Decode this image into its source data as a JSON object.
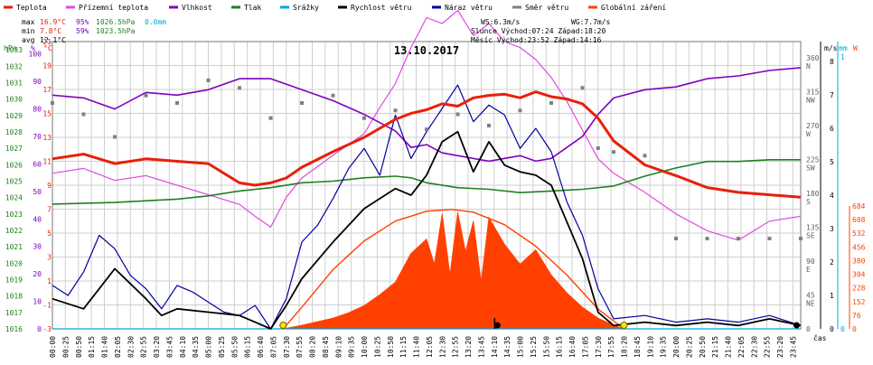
{
  "chart_data": {
    "type": "line",
    "title": "13.10.2017",
    "xlabel": "čas",
    "legend_position": "top",
    "grid": true,
    "legend": [
      {
        "label": "Teplota",
        "color": "#e8200a"
      },
      {
        "label": "Přízemní teplota",
        "color": "#e04ae0"
      },
      {
        "label": "Vlhkost",
        "color": "#8000c0"
      },
      {
        "label": "Tlak",
        "color": "#208020"
      },
      {
        "label": "Srážky",
        "color": "#00a8d8"
      },
      {
        "label": "Rychlost větru",
        "color": "#000000"
      },
      {
        "label": "Náraz větru",
        "color": "#0000a0"
      },
      {
        "label": "Směr větru",
        "color": "#808080"
      },
      {
        "label": "Globální záření",
        "color": "#ff4000"
      }
    ],
    "stats": {
      "max": {
        "label": "max",
        "temp": "16.9°C",
        "hum": "95%",
        "press": "1026.5hPa",
        "rain": "0.0mm"
      },
      "min": {
        "label": "min",
        "temp": "7.8°C",
        "hum": "59%",
        "press": "1023.5hPa"
      },
      "avg": {
        "label": "avg",
        "temp": "12.1°C"
      }
    },
    "info": {
      "ws": "WS:6.3m/s",
      "wg": "WG:7.7m/s",
      "sun": "Slunce Východ:07:24  Západ:18:20",
      "moon": "Měsíc  Východ:23:52  Západ:14:16"
    },
    "axes": {
      "hpa": {
        "label": "hPa",
        "ticks": [
          "1033",
          "1032",
          "1031",
          "1030",
          "1029",
          "1028",
          "1027",
          "1026",
          "1025",
          "1024",
          "1023",
          "1022",
          "1021",
          "1020",
          "1019",
          "1018",
          "1017",
          "1016"
        ],
        "color": "#208020"
      },
      "pct": {
        "label": "%",
        "ticks": [
          "100",
          "90",
          "80",
          "70",
          "60",
          "50",
          "40",
          "30",
          "20",
          "10",
          "0"
        ],
        "color": "#8000c0"
      },
      "degc": {
        "label": "°C",
        "ticks": [
          "21",
          "19",
          "17",
          "15",
          "13",
          "11",
          "9",
          "7",
          "5",
          "3",
          "1",
          "-1",
          "-3"
        ],
        "color": "#e8200a"
      },
      "dir": {
        "ticks": [
          "360\nN",
          "315\nNW",
          "270\nW",
          "225\nSW",
          "180\nS",
          "135\nSE",
          "90\nE",
          "45\nNE",
          "0"
        ],
        "color": "#606060"
      },
      "ms": {
        "label": "m/s",
        "ticks": [
          "8",
          "7",
          "6",
          "5",
          "4",
          "3",
          "2",
          "1",
          "0"
        ],
        "color": "#000000"
      },
      "mm": {
        "label": "mm",
        "ticks": [
          "1",
          "0"
        ],
        "color": "#00a8d8"
      },
      "wm2": {
        "label": "W",
        "ticks": [
          "684",
          "608",
          "532",
          "456",
          "380",
          "304",
          "228",
          "152",
          "76",
          "0"
        ],
        "color": "#ff4000"
      }
    },
    "x_ticks": [
      "00:00",
      "00:25",
      "00:50",
      "01:15",
      "01:40",
      "02:05",
      "02:30",
      "02:55",
      "03:20",
      "03:45",
      "04:10",
      "04:35",
      "05:00",
      "05:25",
      "05:50",
      "06:15",
      "06:40",
      "07:05",
      "07:30",
      "07:55",
      "08:20",
      "08:45",
      "09:10",
      "09:35",
      "10:00",
      "10:25",
      "10:50",
      "11:15",
      "11:40",
      "12:05",
      "12:30",
      "12:55",
      "13:20",
      "13:45",
      "14:10",
      "14:35",
      "15:00",
      "15:25",
      "15:50",
      "16:15",
      "16:40",
      "17:05",
      "17:30",
      "17:55",
      "18:20",
      "18:45",
      "19:10",
      "19:35",
      "20:00",
      "20:25",
      "20:50",
      "21:15",
      "21:40",
      "22:05",
      "22:30",
      "22:55",
      "23:20",
      "23:45"
    ],
    "series": [
      {
        "name": "Teplota",
        "unit": "°C",
        "color": "#e8200a",
        "x": [
          0,
          1,
          2,
          3,
          4,
          5,
          6,
          6.5,
          7,
          7.5,
          8,
          9,
          10,
          11,
          11.5,
          12,
          12.5,
          13,
          13.5,
          14,
          14.5,
          15,
          15.5,
          16,
          16.5,
          17,
          17.5,
          18,
          19,
          20,
          21,
          22,
          23,
          24
        ],
        "y": [
          11.2,
          11.6,
          10.8,
          11.2,
          11.0,
          10.8,
          9.2,
          9.0,
          9.2,
          9.6,
          10.5,
          11.8,
          13.0,
          14.5,
          15.0,
          15.3,
          15.8,
          15.6,
          16.3,
          16.5,
          16.6,
          16.3,
          16.8,
          16.4,
          16.2,
          15.8,
          14.6,
          12.7,
          10.7,
          9.8,
          8.8,
          8.4,
          8.2,
          8.0
        ]
      },
      {
        "name": "Přízemní teplota",
        "unit": "°C",
        "color": "#e04ae0",
        "x": [
          0,
          1,
          2,
          3,
          4,
          5,
          6,
          6.5,
          7,
          7.5,
          8,
          9,
          10,
          10.5,
          11,
          11.5,
          12,
          12.5,
          13,
          13.5,
          14,
          14.5,
          15,
          15.5,
          16,
          16.5,
          17,
          17.5,
          18,
          19,
          20,
          21,
          22,
          23,
          24
        ],
        "y": [
          10.0,
          10.4,
          9.4,
          9.8,
          9.0,
          8.2,
          7.4,
          6.4,
          5.5,
          8.0,
          9.6,
          11.5,
          13.3,
          15.5,
          17.5,
          20.5,
          23.0,
          22.5,
          23.6,
          21.5,
          22.5,
          21.0,
          20.5,
          19.5,
          18.0,
          16.0,
          13.6,
          11.2,
          10.0,
          8.4,
          6.6,
          5.2,
          4.4,
          6.0,
          6.4
        ]
      },
      {
        "name": "Vlhkost",
        "unit": "%",
        "color": "#8000c0",
        "x": [
          0,
          1,
          2,
          3,
          4,
          5,
          6,
          7,
          8,
          9,
          10,
          11,
          11.5,
          12,
          12.5,
          13,
          14,
          15,
          15.5,
          16,
          16.5,
          17,
          17.5,
          18,
          19,
          20,
          21,
          22,
          23,
          24
        ],
        "y": [
          85,
          84,
          80,
          86,
          85,
          87,
          91,
          91,
          87,
          83,
          78,
          72,
          66,
          67,
          64,
          63,
          61,
          63,
          61,
          62,
          66,
          70,
          78,
          84,
          87,
          88,
          91,
          92,
          94,
          95
        ]
      },
      {
        "name": "Tlak",
        "unit": "hPa",
        "color": "#208020",
        "x": [
          0,
          2,
          4,
          5,
          6,
          7,
          8,
          9,
          10,
          11,
          11.5,
          12,
          13,
          14,
          15,
          16,
          17,
          18,
          19,
          20,
          21,
          22,
          23,
          24
        ],
        "y": [
          1023.6,
          1023.7,
          1023.9,
          1024.1,
          1024.4,
          1024.6,
          1024.9,
          1025.0,
          1025.2,
          1025.3,
          1025.2,
          1024.9,
          1024.6,
          1024.5,
          1024.3,
          1024.4,
          1024.5,
          1024.7,
          1025.3,
          1025.8,
          1026.2,
          1026.2,
          1026.3,
          1026.3
        ]
      },
      {
        "name": "Srážky",
        "unit": "mm",
        "color": "#00a8d8",
        "x": [
          0,
          24
        ],
        "y": [
          0,
          0
        ]
      },
      {
        "name": "Rychlost větru",
        "unit": "m/s",
        "color": "#000000",
        "x": [
          0,
          1,
          2,
          3,
          3.5,
          4,
          5,
          6,
          6.5,
          7,
          7.5,
          8,
          9,
          10,
          11,
          11.5,
          12,
          12.5,
          13,
          13.5,
          14,
          14.5,
          15,
          15.5,
          16,
          16.5,
          17,
          17.5,
          18,
          19,
          20,
          21,
          22,
          23,
          24
        ],
        "y": [
          0.9,
          0.6,
          1.8,
          0.9,
          0.4,
          0.6,
          0.5,
          0.4,
          0.2,
          0.0,
          0.7,
          1.5,
          2.6,
          3.6,
          4.2,
          4.0,
          4.6,
          5.6,
          5.9,
          4.7,
          5.6,
          4.9,
          4.7,
          4.6,
          4.3,
          3.2,
          2.1,
          0.5,
          0.1,
          0.2,
          0.1,
          0.2,
          0.1,
          0.3,
          0.1
        ]
      },
      {
        "name": "Náraz větru",
        "unit": "m/s",
        "color": "#0000a0",
        "x": [
          0,
          0.5,
          1,
          1.5,
          2,
          2.5,
          3,
          3.5,
          4,
          4.5,
          5,
          5.5,
          6,
          6.5,
          7,
          7.5,
          8,
          8.5,
          9,
          9.5,
          10,
          10.5,
          11,
          11.5,
          12,
          12.5,
          13,
          13.5,
          14,
          14.5,
          15,
          15.5,
          16,
          16.5,
          17,
          17.5,
          18,
          19,
          20,
          21,
          22,
          23,
          24
        ],
        "y": [
          1.3,
          1.0,
          1.7,
          2.8,
          2.4,
          1.6,
          1.2,
          0.6,
          1.3,
          1.1,
          0.8,
          0.5,
          0.4,
          0.7,
          0.0,
          0.9,
          2.6,
          3.1,
          3.9,
          4.8,
          5.4,
          4.6,
          6.4,
          5.1,
          5.9,
          6.6,
          7.3,
          6.2,
          6.7,
          6.4,
          5.4,
          6.0,
          5.3,
          3.8,
          2.8,
          1.2,
          0.3,
          0.4,
          0.2,
          0.3,
          0.2,
          0.4,
          0.1
        ]
      },
      {
        "name": "Směr větru",
        "unit": "°",
        "color": "#808080",
        "x": [
          0,
          1,
          2,
          3,
          4,
          5,
          6,
          7,
          8,
          9,
          10,
          11,
          12,
          13,
          14,
          15,
          16,
          17,
          17.5,
          18,
          19,
          20,
          21,
          22,
          23,
          24
        ],
        "y": [
          300,
          285,
          255,
          310,
          300,
          330,
          320,
          280,
          300,
          310,
          280,
          290,
          265,
          285,
          270,
          290,
          300,
          320,
          240,
          235,
          230,
          120,
          120,
          120,
          120,
          120
        ]
      },
      {
        "name": "Globální záření",
        "unit": "W/m2",
        "color": "#ff4000",
        "x": [
          7.4,
          8,
          8.5,
          9,
          9.5,
          10,
          10.5,
          11,
          11.5,
          12,
          12.25,
          12.5,
          12.75,
          13,
          13.25,
          13.5,
          13.75,
          14,
          14.5,
          15,
          15.5,
          16,
          16.5,
          17,
          17.5,
          18,
          18.33
        ],
        "y": [
          0,
          20,
          40,
          60,
          90,
          130,
          190,
          260,
          420,
          500,
          360,
          640,
          300,
          650,
          430,
          600,
          260,
          620,
          470,
          360,
          440,
          300,
          200,
          120,
          60,
          20,
          0
        ]
      },
      {
        "name": "Teoretické záření",
        "unit": "W/m2",
        "color": "#ff4000",
        "x": [
          7.4,
          8,
          9,
          10,
          11,
          12,
          12.8,
          13.5,
          14.5,
          15.5,
          16.5,
          17.5,
          18.33
        ],
        "y": [
          0,
          120,
          330,
          490,
          600,
          655,
          665,
          650,
          580,
          460,
          300,
          110,
          0
        ]
      }
    ]
  }
}
